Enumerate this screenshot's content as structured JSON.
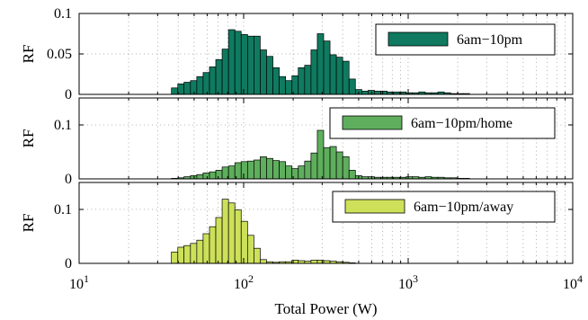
{
  "chart_data": [
    {
      "type": "bar",
      "ylabel": "RF",
      "ylim": [
        0,
        0.1
      ],
      "yticks": [
        0,
        0.05,
        0.1
      ],
      "ytick_labels": [
        "0",
        "0.05",
        "0.1"
      ],
      "legend": "6am−10pm",
      "legend_position": "top-right",
      "color": "#0f7a5f",
      "log_x": true,
      "xlim": [
        10,
        10000
      ],
      "grid": true,
      "bin_edges": [
        36.4,
        39.8,
        43.4,
        47.5,
        51.9,
        56.7,
        62.0,
        67.7,
        74.0,
        80.9,
        88.4,
        96.6,
        105.6,
        115.4,
        126.1,
        137.8,
        150.6,
        164.6,
        179.9,
        196.6,
        214.8,
        234.8,
        256.6,
        280.4,
        306.4,
        334.9,
        366.0,
        400.0,
        437.1,
        477.7,
        522.1,
        570.6,
        623.5,
        681.4,
        744.7,
        813.8,
        889.4,
        972.0,
        1062.2,
        1160.8,
        1268.6,
        1386.4,
        1515.1,
        1655.8,
        1809.5,
        1977.5,
        2161.0,
        2361.7,
        2581.0
      ],
      "values": [
        0.008,
        0.013,
        0.015,
        0.017,
        0.022,
        0.027,
        0.034,
        0.043,
        0.056,
        0.08,
        0.078,
        0.074,
        0.072,
        0.072,
        0.055,
        0.047,
        0.033,
        0.022,
        0.017,
        0.023,
        0.033,
        0.036,
        0.055,
        0.075,
        0.066,
        0.049,
        0.046,
        0.041,
        0.019,
        0.006,
        0.004,
        0.005,
        0.004,
        0.004,
        0.003,
        0.003,
        0.003,
        0.002,
        0.002,
        0.003,
        0.002,
        0.002,
        0.003,
        0.002,
        0.001,
        0.001,
        0.001,
        0.0
      ]
    },
    {
      "type": "bar",
      "ylabel": "RF",
      "ylim": [
        0,
        0.15
      ],
      "yticks": [
        0,
        0.1
      ],
      "ytick_labels": [
        "0",
        "0.1"
      ],
      "legend": "6am−10pm/home",
      "legend_position": "top-right",
      "color": "#5fae5d",
      "log_x": true,
      "xlim": [
        10,
        10000
      ],
      "grid": true,
      "bin_edges": [
        36.4,
        39.8,
        43.4,
        47.5,
        51.9,
        56.7,
        62.0,
        67.7,
        74.0,
        80.9,
        88.4,
        96.6,
        105.6,
        115.4,
        126.1,
        137.8,
        150.6,
        164.6,
        179.9,
        196.6,
        214.8,
        234.8,
        256.6,
        280.4,
        306.4,
        334.9,
        366.0,
        400.0,
        437.1,
        477.7,
        522.1,
        570.6,
        623.5,
        681.4,
        744.7,
        813.8,
        889.4,
        972.0,
        1062.2,
        1160.8,
        1268.6,
        1386.4,
        1515.1,
        1655.8,
        1809.5,
        1977.5,
        2161.0,
        2361.7,
        2581.0
      ],
      "values": [
        0.001,
        0.002,
        0.004,
        0.006,
        0.008,
        0.011,
        0.013,
        0.016,
        0.022,
        0.024,
        0.03,
        0.032,
        0.033,
        0.035,
        0.041,
        0.038,
        0.034,
        0.032,
        0.024,
        0.019,
        0.024,
        0.033,
        0.048,
        0.09,
        0.058,
        0.06,
        0.05,
        0.041,
        0.016,
        0.006,
        0.004,
        0.004,
        0.003,
        0.003,
        0.003,
        0.003,
        0.003,
        0.004,
        0.004,
        0.003,
        0.004,
        0.003,
        0.003,
        0.002,
        0.002,
        0.001,
        0.001,
        0.0
      ]
    },
    {
      "type": "bar",
      "ylabel": "RF",
      "ylim": [
        0,
        0.15
      ],
      "yticks": [
        0,
        0.1
      ],
      "ytick_labels": [
        "0",
        "0.1"
      ],
      "legend": "6am−10pm/away",
      "legend_position": "top-right",
      "color": "#cde05a",
      "log_x": true,
      "xlim": [
        10,
        10000
      ],
      "grid": true,
      "xlabel": "Total Power (W)",
      "xticks": [
        10,
        100,
        1000,
        10000
      ],
      "xtick_bases": [
        "10",
        "10",
        "10",
        "10"
      ],
      "xtick_exponents": [
        "1",
        "2",
        "3",
        "4"
      ],
      "bin_edges": [
        36.4,
        39.8,
        43.4,
        47.5,
        51.9,
        56.7,
        62.0,
        67.7,
        74.0,
        80.9,
        88.4,
        96.6,
        105.6,
        115.4,
        126.1,
        137.8,
        150.6,
        164.6,
        179.9,
        196.6,
        214.8,
        234.8,
        256.6,
        280.4,
        306.4,
        334.9,
        366.0,
        400.0,
        437.1,
        477.7,
        522.1,
        570.6,
        623.5,
        681.4,
        744.7,
        813.8,
        889.4,
        972.0,
        1062.2,
        1160.8,
        1268.6,
        1386.4,
        1515.1,
        1655.8,
        1809.5,
        1977.5,
        2161.0,
        2361.7,
        2581.0
      ],
      "values": [
        0.021,
        0.03,
        0.033,
        0.037,
        0.043,
        0.055,
        0.068,
        0.085,
        0.119,
        0.112,
        0.099,
        0.078,
        0.052,
        0.028,
        0.007,
        0.003,
        0.002,
        0.003,
        0.003,
        0.006,
        0.005,
        0.004,
        0.006,
        0.006,
        0.005,
        0.004,
        0.003,
        0.002,
        0.001,
        0.0,
        0.0,
        0.0,
        0.0,
        0.0,
        0.0,
        0.0,
        0.0,
        0.0,
        0.0,
        0.0,
        0.0,
        0.0,
        0.0,
        0.0,
        0.0,
        0.0,
        0.0,
        0.0
      ]
    }
  ]
}
